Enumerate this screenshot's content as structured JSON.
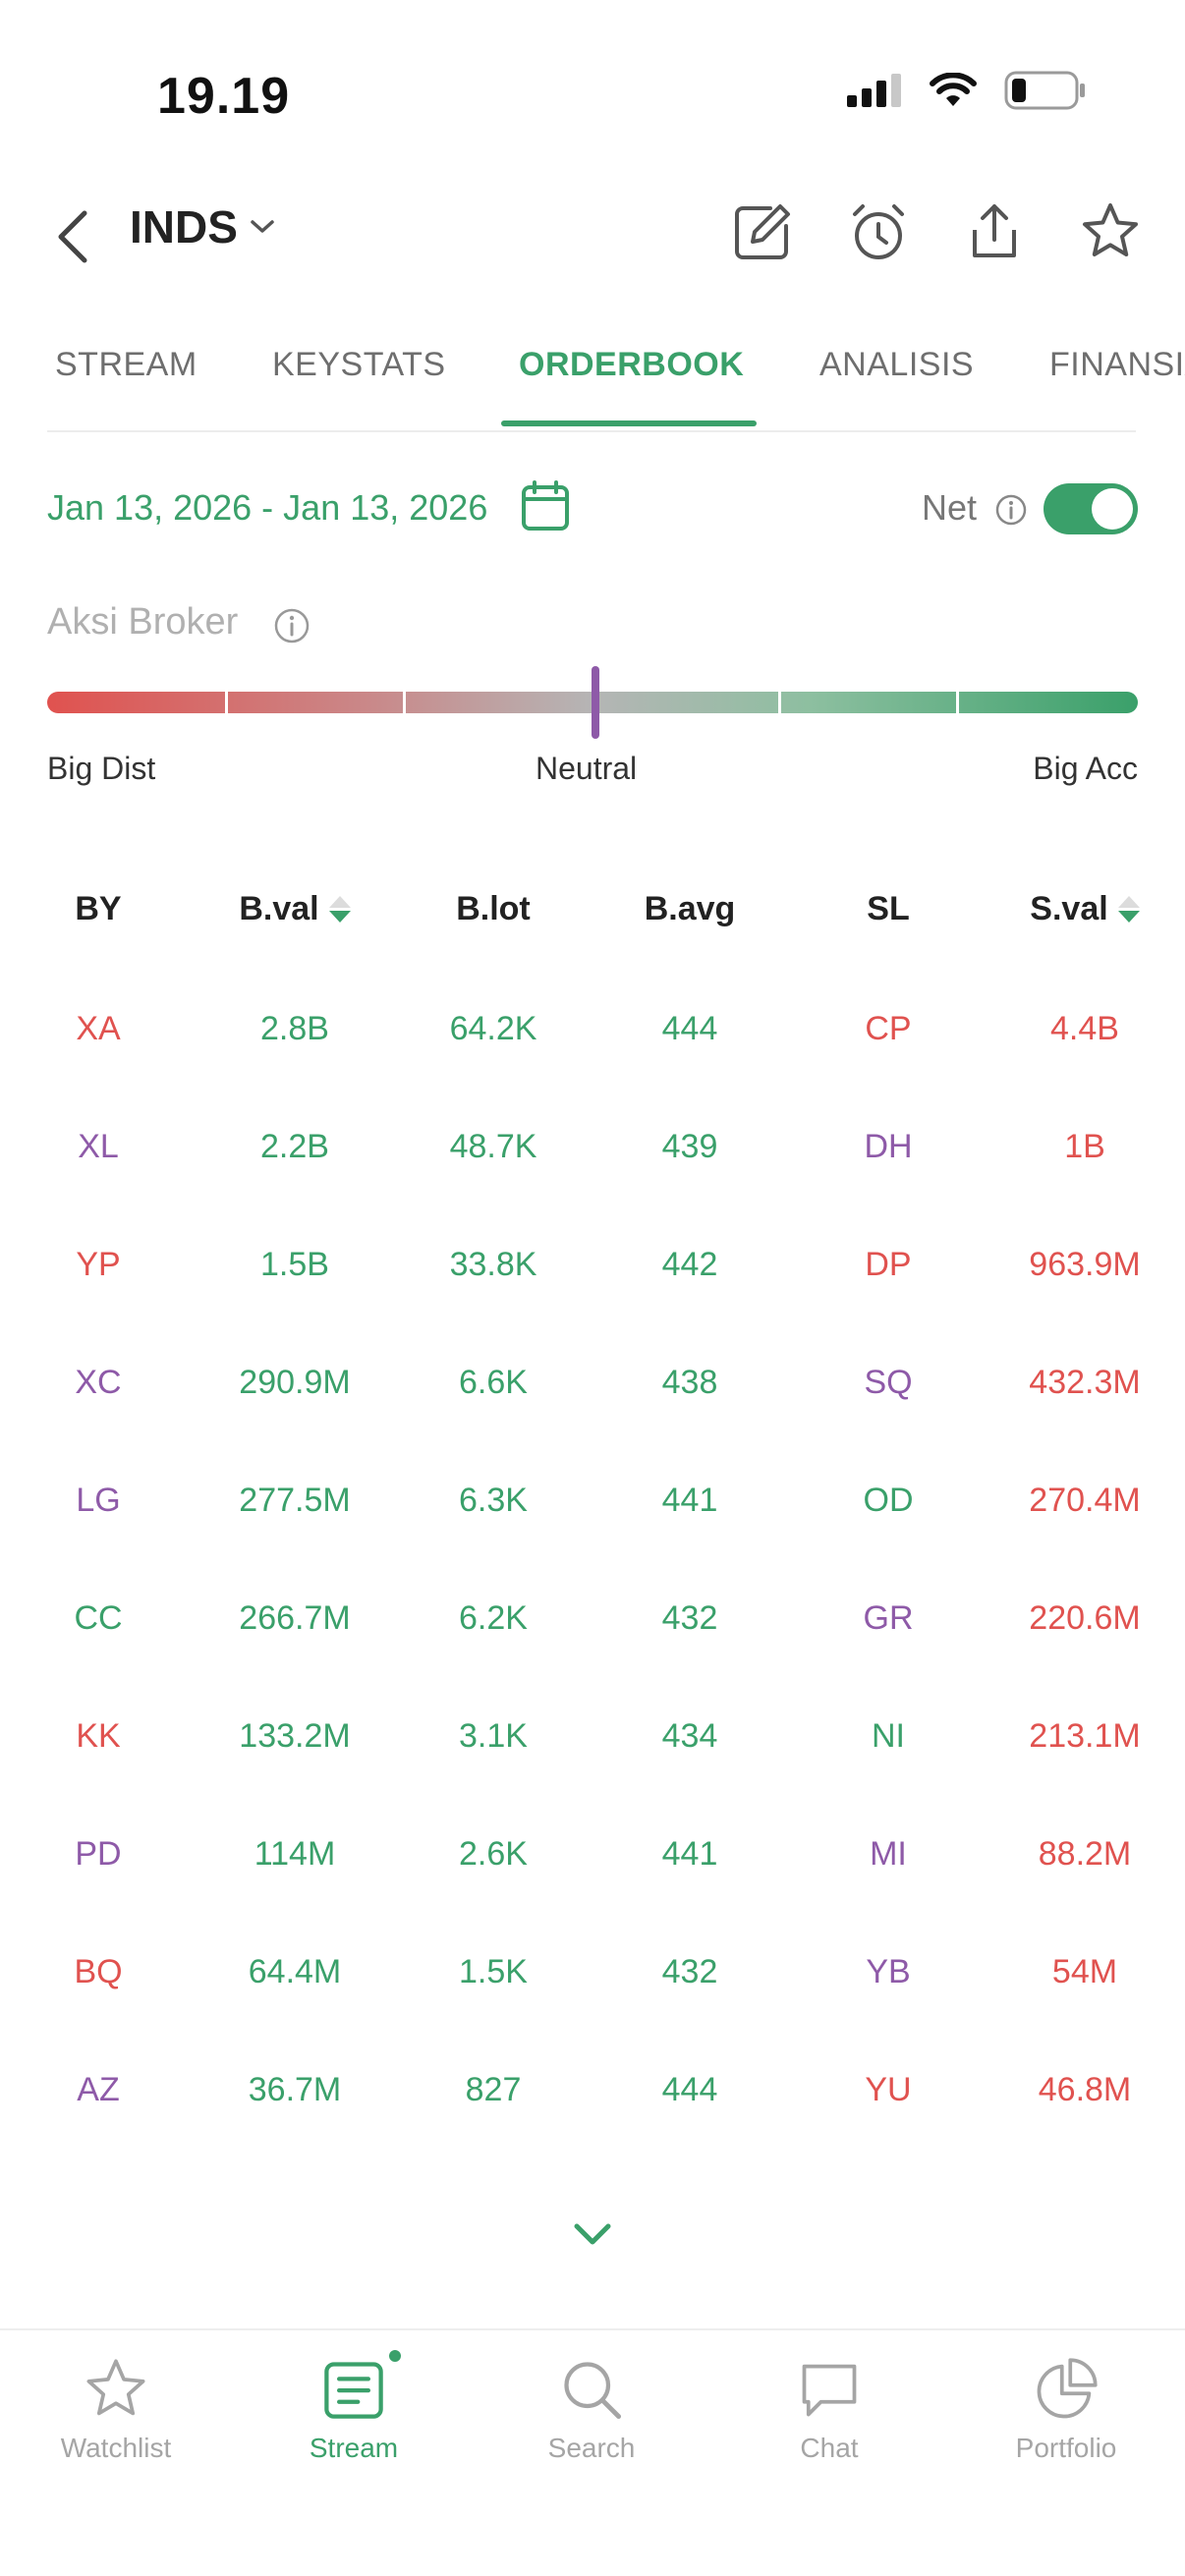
{
  "status_bar": {
    "time": "19.19"
  },
  "header": {
    "ticker": "INDS"
  },
  "tabs": [
    {
      "label": "STREAM"
    },
    {
      "label": "KEYSTATS"
    },
    {
      "label": "ORDERBOOK"
    },
    {
      "label": "ANALISIS"
    },
    {
      "label": "FINANSIAL"
    }
  ],
  "filters": {
    "date_range": "Jan 13, 2026 - Jan 13, 2026",
    "net_label": "Net",
    "net_enabled": true
  },
  "aksi_broker": {
    "label": "Aksi Broker",
    "left_label": "Big Dist",
    "center_label": "Neutral",
    "right_label": "Big Acc"
  },
  "table": {
    "headers": [
      "BY",
      "B.val",
      "B.lot",
      "B.avg",
      "SL",
      "S.val"
    ],
    "rows": [
      {
        "by": "XA",
        "by_color": "#e0524f",
        "bval": "2.8B",
        "blot": "64.2K",
        "bavg": "444",
        "sl": "CP",
        "sl_color": "#e0524f",
        "sval": "4.4B"
      },
      {
        "by": "XL",
        "by_color": "#8e5aa8",
        "bval": "2.2B",
        "blot": "48.7K",
        "bavg": "439",
        "sl": "DH",
        "sl_color": "#8e5aa8",
        "sval": "1B"
      },
      {
        "by": "YP",
        "by_color": "#e0524f",
        "bval": "1.5B",
        "blot": "33.8K",
        "bavg": "442",
        "sl": "DP",
        "sl_color": "#e0524f",
        "sval": "963.9M"
      },
      {
        "by": "XC",
        "by_color": "#8e5aa8",
        "bval": "290.9M",
        "blot": "6.6K",
        "bavg": "438",
        "sl": "SQ",
        "sl_color": "#8e5aa8",
        "sval": "432.3M"
      },
      {
        "by": "LG",
        "by_color": "#8e5aa8",
        "bval": "277.5M",
        "blot": "6.3K",
        "bavg": "441",
        "sl": "OD",
        "sl_color": "#3aa06a",
        "sval": "270.4M"
      },
      {
        "by": "CC",
        "by_color": "#3aa06a",
        "bval": "266.7M",
        "blot": "6.2K",
        "bavg": "432",
        "sl": "GR",
        "sl_color": "#8e5aa8",
        "sval": "220.6M"
      },
      {
        "by": "KK",
        "by_color": "#e0524f",
        "bval": "133.2M",
        "blot": "3.1K",
        "bavg": "434",
        "sl": "NI",
        "sl_color": "#3aa06a",
        "sval": "213.1M"
      },
      {
        "by": "PD",
        "by_color": "#8e5aa8",
        "bval": "114M",
        "blot": "2.6K",
        "bavg": "441",
        "sl": "MI",
        "sl_color": "#8e5aa8",
        "sval": "88.2M"
      },
      {
        "by": "BQ",
        "by_color": "#e0524f",
        "bval": "64.4M",
        "blot": "1.5K",
        "bavg": "432",
        "sl": "YB",
        "sl_color": "#8e5aa8",
        "sval": "54M"
      },
      {
        "by": "AZ",
        "by_color": "#8e5aa8",
        "bval": "36.7M",
        "blot": "827",
        "bavg": "444",
        "sl": "YU",
        "sl_color": "#e0524f",
        "sval": "46.8M"
      }
    ]
  },
  "bottom_nav": [
    {
      "label": "Watchlist",
      "icon": "star-icon",
      "active": false
    },
    {
      "label": "Stream",
      "icon": "stream-icon",
      "active": true
    },
    {
      "label": "Search",
      "icon": "search-icon",
      "active": false
    },
    {
      "label": "Chat",
      "icon": "chat-icon",
      "active": false
    },
    {
      "label": "Portfolio",
      "icon": "pie-chart-icon",
      "active": false
    }
  ],
  "colors": {
    "accent": "#3aa06a",
    "sell": "#e0524f",
    "broker_purple": "#8e5aa8"
  }
}
